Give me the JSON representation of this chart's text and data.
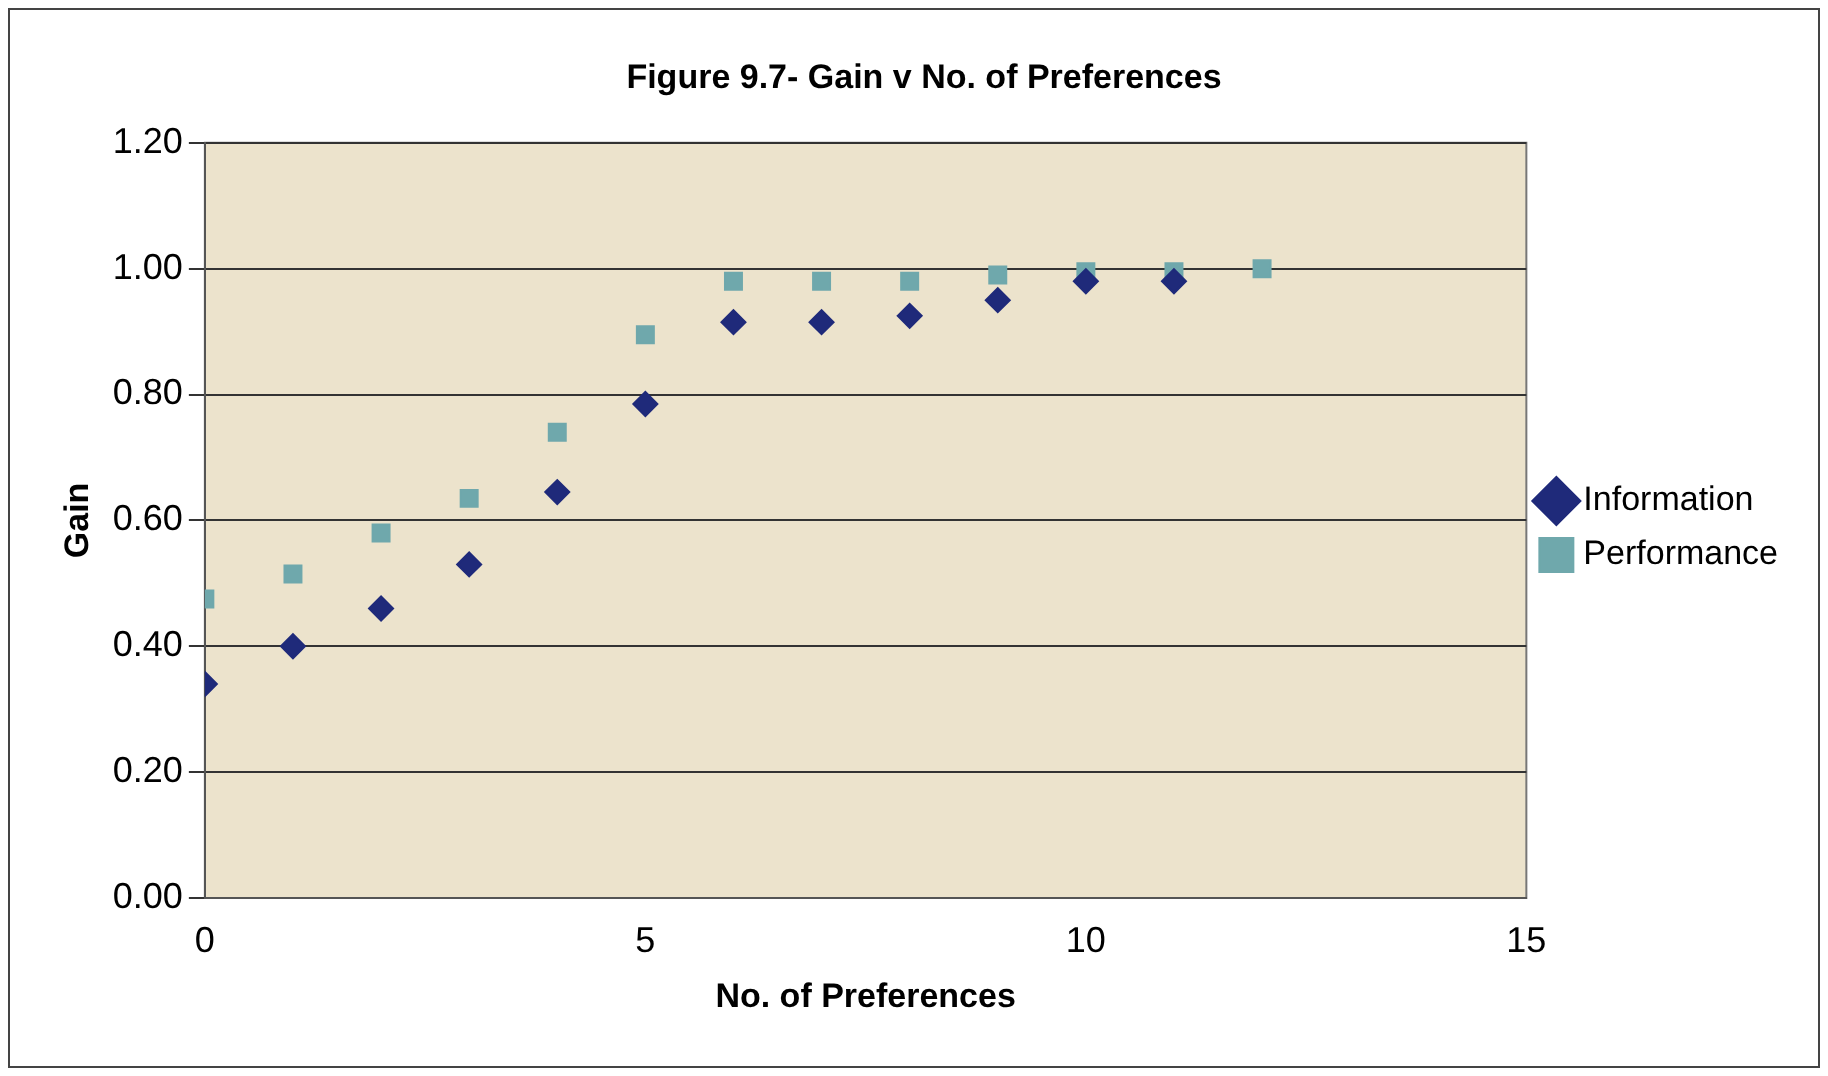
{
  "chart_data": {
    "type": "scatter",
    "title": "Figure 9.7- Gain v No. of Preferences",
    "xlabel": "No. of Preferences",
    "ylabel": "Gain",
    "series": [
      {
        "name": "Information",
        "color": "#1f2a7a",
        "marker": "diamond",
        "x": [
          0,
          1,
          2,
          3,
          4,
          5,
          6,
          7,
          8,
          9,
          10,
          11
        ],
        "values": [
          0.34,
          0.4,
          0.46,
          0.53,
          0.645,
          0.785,
          0.915,
          0.915,
          0.925,
          0.95,
          0.98,
          0.98
        ]
      },
      {
        "name": "Performance",
        "color": "#6fa8ac",
        "marker": "square",
        "x": [
          0,
          1,
          2,
          3,
          4,
          5,
          6,
          7,
          8,
          9,
          10,
          11,
          12
        ],
        "values": [
          0.475,
          0.515,
          0.58,
          0.635,
          0.74,
          0.895,
          0.98,
          0.98,
          0.98,
          0.99,
          0.995,
          0.995,
          1.0
        ]
      }
    ],
    "xlim": [
      0,
      15
    ],
    "xticks": [
      0,
      5,
      10,
      15
    ],
    "ylim": [
      0,
      1.2
    ],
    "yticks": [
      {
        "value": 0,
        "label": "0.00"
      },
      {
        "value": 0.2,
        "label": "0.20"
      },
      {
        "value": 0.4,
        "label": "0.40"
      },
      {
        "value": 0.6,
        "label": "0.60"
      },
      {
        "value": 0.8,
        "label": "0.80"
      },
      {
        "value": 1,
        "label": "1.00"
      },
      {
        "value": 1.2,
        "label": "1.20"
      }
    ],
    "grid": "y",
    "legend": "right"
  }
}
